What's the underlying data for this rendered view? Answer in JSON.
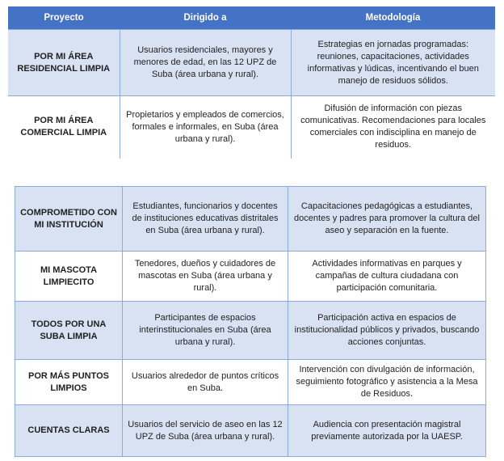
{
  "colors": {
    "header_bg": "#4472C4",
    "shaded_row": "#D9E2F3",
    "border": "#8EAADB"
  },
  "table1": {
    "headers": [
      "Proyecto",
      "Dirigido a",
      "Metodología"
    ],
    "rows": [
      {
        "proyecto": "POR MI ÁREA RESIDENCIAL LIMPIA",
        "dirigido": "Usuarios residenciales, mayores y menores de edad, en las 12 UPZ de Suba (área urbana y rural).",
        "metodologia": "Estrategias en jornadas programadas: reuniones, capacitaciones, actividades informativas y lúdicas, incentivando el buen manejo de residuos sólidos."
      },
      {
        "proyecto": "POR MI ÁREA COMERCIAL LIMPIA",
        "dirigido": "Propietarios y empleados de comercios, formales e informales, en Suba (área urbana y rural).",
        "metodologia": "Difusión de información con piezas comunicativas. Recomendaciones para locales comerciales con indisciplina en manejo de residuos."
      }
    ]
  },
  "table2": {
    "rows": [
      {
        "proyecto": "COMPROMETIDO CON MI INSTITUCIÓN",
        "dirigido": "Estudiantes, funcionarios y docentes de instituciones educativas distritales en Suba (área urbana y rural).",
        "metodologia": "Capacitaciones pedagógicas a estudiantes, docentes y padres para promover la cultura del aseo y separación en la fuente."
      },
      {
        "proyecto": "MI MASCOTA LIMPIECITO",
        "dirigido": "Tenedores, dueños y cuidadores de mascotas en Suba (área urbana y rural).",
        "metodologia": "Actividades informativas en parques y campañas de cultura ciudadana con participación comunitaria."
      },
      {
        "proyecto": "TODOS POR UNA SUBA LIMPIA",
        "dirigido": "Participantes de espacios interinstitucionales en Suba (área urbana y rural).",
        "metodologia": "Participación activa en espacios de institucionalidad públicos y privados, buscando acciones conjuntas."
      },
      {
        "proyecto": "POR MÁS PUNTOS LIMPIOS",
        "dirigido": "Usuarios alrededor de puntos críticos en Suba.",
        "metodologia": "Intervención con divulgación de información, seguimiento fotográfico y asistencia a la Mesa de Residuos."
      },
      {
        "proyecto": "CUENTAS CLARAS",
        "dirigido": "Usuarios del servicio de aseo en las 12 UPZ de Suba (área urbana y rural).",
        "metodologia": "Audiencia con presentación magistral previamente autorizada por la UAESP."
      }
    ]
  }
}
